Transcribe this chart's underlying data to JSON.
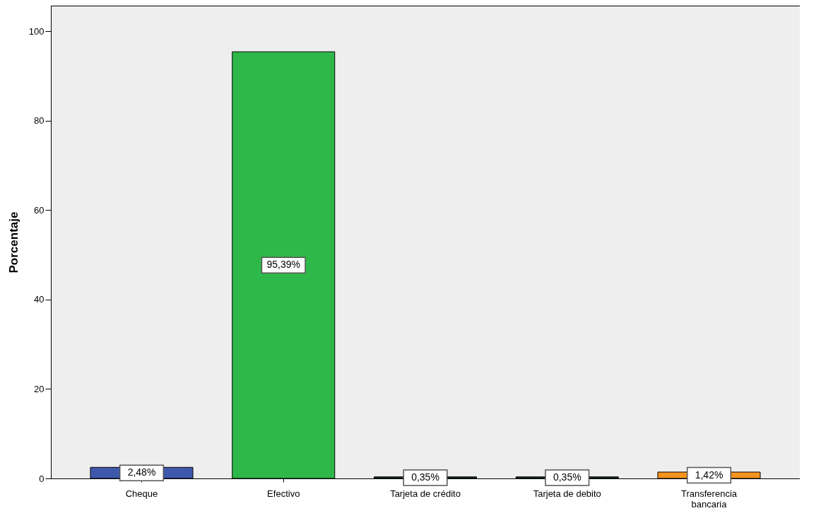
{
  "chart_data": {
    "type": "bar",
    "ylabel": "Porcentaje",
    "categories": [
      "Cheque",
      "Efectivo",
      "Tarjeta de crédito",
      "Tarjeta de debito",
      "Transferencia bancaria"
    ],
    "values": [
      2.48,
      95.39,
      0.35,
      0.35,
      1.42
    ],
    "colors": [
      "#3e58ac",
      "#2eb84a",
      "#1a3a22",
      "#1a3a22",
      "#f7941d"
    ],
    "value_labels": [
      "2,48%",
      "95,39%",
      "0,35%",
      "0,35%",
      "1,42%"
    ],
    "ylim": [
      0,
      105.7
    ],
    "yticks": [
      0,
      20,
      40,
      60,
      80,
      100
    ],
    "grid": false,
    "legend": false
  }
}
